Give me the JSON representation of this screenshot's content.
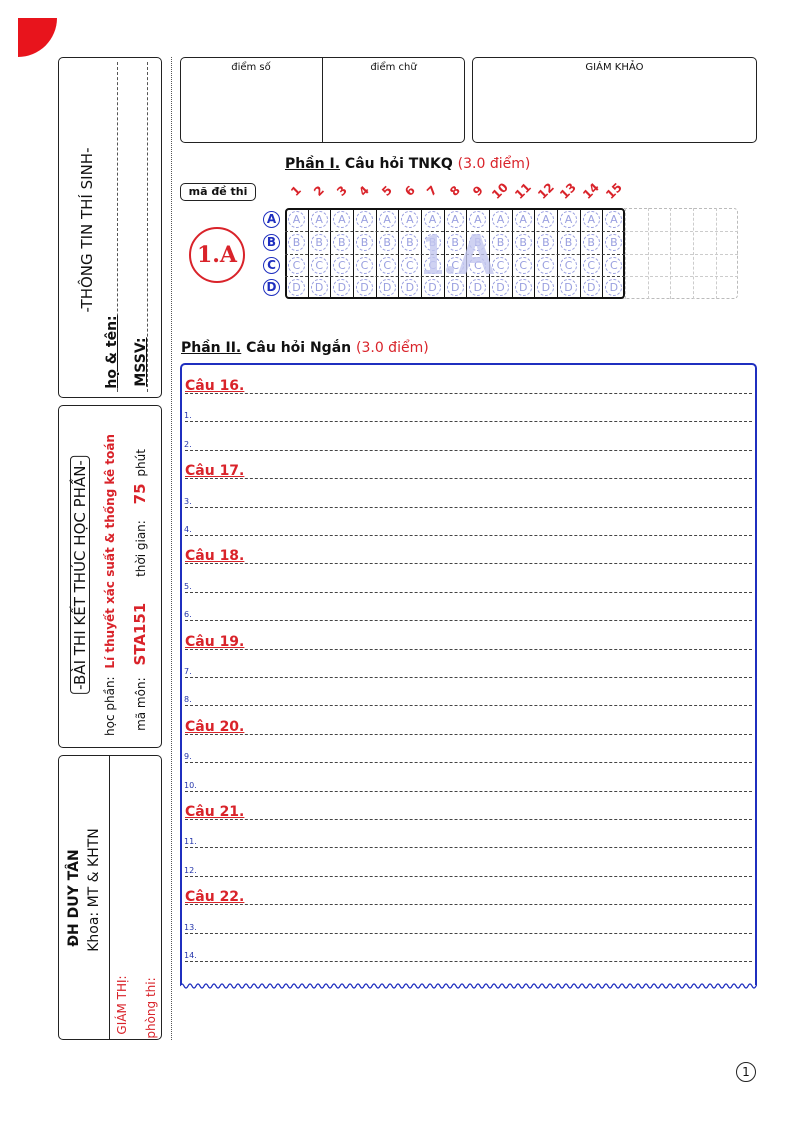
{
  "student_info": {
    "title": "-THÔNG TIN THÍ SINH-",
    "name_label": "họ & tên:",
    "id_label": "MSSV:"
  },
  "exam_info": {
    "title": "-BÀI THI KẾT THÚC HỌC PHẦN-",
    "course_label": "học phần:",
    "course_value": "Lí thuyết xác suất & thống kê toán",
    "code_label": "mã môn:",
    "code_value": "STA151",
    "time_label": "thời gian:",
    "time_value": "75",
    "time_unit": "phút"
  },
  "school": {
    "name": "ĐH DUY TÂN",
    "faculty": "Khoa: MT & KHTN",
    "proctor_label": "GIÁM THỊ:",
    "room_label": "phòng thi:"
  },
  "score": {
    "number_label": "điểm số",
    "word_label": "điểm chữ",
    "examiner_label": "GIÁM KHẢO"
  },
  "part1": {
    "title_prefix": "Phần I.",
    "title": "Câu hỏi TNKQ",
    "points": "(3.0 điểm)",
    "exam_code_label": "mã đề thi",
    "exam_code": "1.A",
    "watermark": "1.A",
    "question_numbers": [
      "1",
      "2",
      "3",
      "4",
      "5",
      "6",
      "7",
      "8",
      "9",
      "10",
      "11",
      "12",
      "13",
      "14",
      "15"
    ],
    "options": [
      "A",
      "B",
      "C",
      "D"
    ]
  },
  "part2": {
    "title_prefix": "Phần II.",
    "title": "Câu hỏi Ngắn",
    "points": "(3.0 điểm)",
    "questions": [
      {
        "label": "Câu 16.",
        "subs": [
          "1.",
          "2."
        ]
      },
      {
        "label": "Câu 17.",
        "subs": [
          "3.",
          "4."
        ]
      },
      {
        "label": "Câu 18.",
        "subs": [
          "5.",
          "6."
        ]
      },
      {
        "label": "Câu 19.",
        "subs": [
          "7.",
          "8."
        ]
      },
      {
        "label": "Câu 20.",
        "subs": [
          "9.",
          "10."
        ]
      },
      {
        "label": "Câu 21.",
        "subs": [
          "11.",
          "12."
        ]
      },
      {
        "label": "Câu 22.",
        "subs": [
          "13.",
          "14."
        ]
      }
    ]
  },
  "page_number": "1",
  "colors": {
    "accent": "#d9232a",
    "blue": "#1f2fbf",
    "bubble": "#9aa0e0"
  }
}
